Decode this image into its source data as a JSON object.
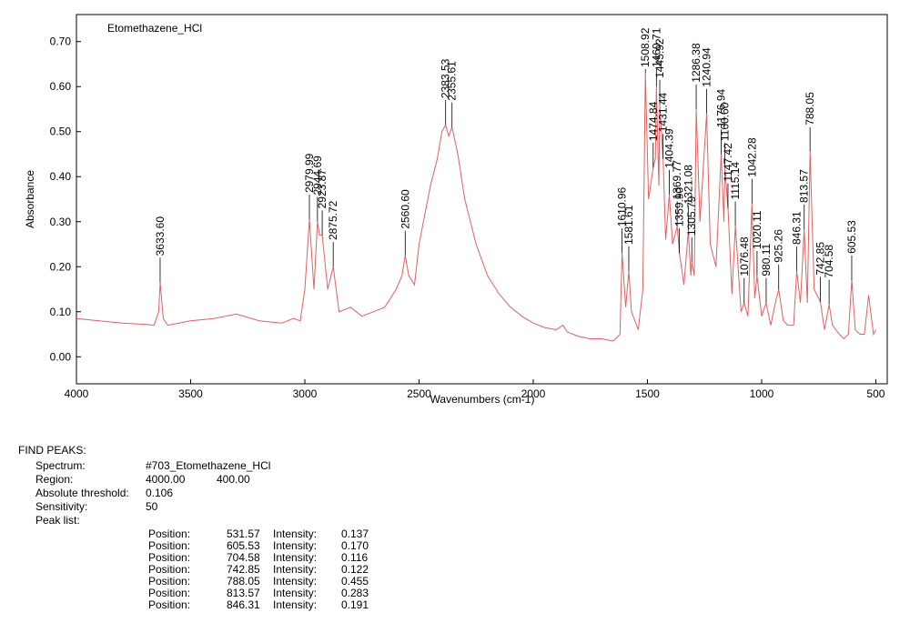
{
  "chart_data": {
    "type": "line",
    "title": "Etomethazene_HCl",
    "xlabel": "Wavenumbers (cm-1)",
    "ylabel": "Absorbance",
    "xlim": [
      4000,
      450
    ],
    "ylim": [
      -0.06,
      0.76
    ],
    "x_ticks": [
      4000,
      3500,
      3000,
      2500,
      2000,
      1500,
      1000,
      500
    ],
    "y_ticks": [
      "0.00",
      "0.10",
      "0.20",
      "0.30",
      "0.40",
      "0.50",
      "0.60",
      "0.70"
    ],
    "line_color": "#e06060",
    "series": [
      {
        "x": [
          4000,
          3900,
          3800,
          3700,
          3660,
          3640,
          3633.6,
          3620,
          3600,
          3500,
          3400,
          3300,
          3200,
          3100,
          3050,
          3020,
          3000,
          2979.99,
          2960,
          2944.69,
          2935,
          2923.87,
          2900,
          2875.72,
          2850,
          2800,
          2750,
          2700,
          2650,
          2600,
          2575,
          2560.6,
          2545,
          2520,
          2500,
          2450,
          2420,
          2400,
          2383.53,
          2370,
          2355.61,
          2330,
          2300,
          2250,
          2200,
          2150,
          2100,
          2050,
          2000,
          1950,
          1900,
          1870,
          1850,
          1800,
          1750,
          1700,
          1650,
          1620,
          1610.96,
          1595,
          1581.61,
          1570,
          1540,
          1520,
          1508.92,
          1495,
          1474.84,
          1465,
          1460.71,
          1450,
          1445.92,
          1431.44,
          1420,
          1404.39,
          1390,
          1369.77,
          1359.9,
          1340,
          1321.08,
          1310,
          1305.79,
          1295,
          1286.38,
          1270,
          1240.94,
          1225,
          1200,
          1176.94,
          1165,
          1160.6,
          1147.42,
          1130,
          1115.14,
          1090,
          1076.48,
          1060,
          1042.28,
          1030,
          1020.11,
          1000,
          980.11,
          960,
          940,
          925.26,
          905,
          885,
          860,
          846.31,
          830,
          813.57,
          800,
          788.05,
          770,
          742.85,
          725,
          704.58,
          690,
          660,
          640,
          620,
          605.53,
          590,
          570,
          550,
          531.57,
          510,
          500
        ],
        "y": [
          0.085,
          0.08,
          0.075,
          0.072,
          0.07,
          0.1,
          0.165,
          0.085,
          0.07,
          0.08,
          0.085,
          0.095,
          0.08,
          0.075,
          0.085,
          0.08,
          0.15,
          0.305,
          0.15,
          0.3,
          0.27,
          0.27,
          0.15,
          0.2,
          0.1,
          0.11,
          0.09,
          0.1,
          0.11,
          0.15,
          0.18,
          0.225,
          0.18,
          0.16,
          0.25,
          0.38,
          0.44,
          0.5,
          0.515,
          0.49,
          0.51,
          0.45,
          0.35,
          0.25,
          0.18,
          0.14,
          0.11,
          0.09,
          0.075,
          0.065,
          0.06,
          0.07,
          0.055,
          0.045,
          0.04,
          0.04,
          0.035,
          0.05,
          0.23,
          0.11,
          0.19,
          0.1,
          0.06,
          0.15,
          0.63,
          0.35,
          0.42,
          0.44,
          0.6,
          0.38,
          0.56,
          0.44,
          0.26,
          0.36,
          0.25,
          0.29,
          0.23,
          0.16,
          0.28,
          0.18,
          0.21,
          0.18,
          0.55,
          0.3,
          0.54,
          0.25,
          0.2,
          0.45,
          0.3,
          0.42,
          0.33,
          0.14,
          0.29,
          0.1,
          0.12,
          0.09,
          0.34,
          0.13,
          0.18,
          0.09,
          0.12,
          0.07,
          0.12,
          0.15,
          0.08,
          0.07,
          0.07,
          0.19,
          0.12,
          0.283,
          0.12,
          0.455,
          0.15,
          0.122,
          0.06,
          0.116,
          0.07,
          0.05,
          0.04,
          0.05,
          0.17,
          0.06,
          0.05,
          0.05,
          0.137,
          0.05,
          0.06
        ]
      }
    ],
    "peak_labels": [
      "3633.60",
      "2979.99",
      "2944.69",
      "2923.87",
      "2875.72",
      "2560.60",
      "2383.53",
      "2355.61",
      "1610.96",
      "1581.61",
      "1508.92",
      "1474.84",
      "1460.71",
      "1445.92",
      "1431.44",
      "1404.39",
      "1369.77",
      "1359.90",
      "1321.08",
      "1305.79",
      "1286.38",
      "1240.94",
      "1176.94",
      "1160.60",
      "1147.42",
      "1115.14",
      "1076.48",
      "1042.28",
      "1020.11",
      "980.11",
      "925.26",
      "846.31",
      "813.57",
      "788.05",
      "742.85",
      "704.58",
      "605.53"
    ]
  },
  "report": {
    "heading": "FIND PEAKS:",
    "spectrum_label": "Spectrum:",
    "spectrum_value": "#703_Etomethazene_HCl",
    "region_label": "Region:",
    "region_from": "4000.00",
    "region_to": "400.00",
    "threshold_label": "Absolute threshold:",
    "threshold_value": "0.106",
    "sensitivity_label": "Sensitivity:",
    "sensitivity_value": "50",
    "peak_list_label": "Peak list:",
    "position_label": "Position:",
    "intensity_label": "Intensity:",
    "peaks": [
      {
        "position": "531.57",
        "intensity": "0.137"
      },
      {
        "position": "605.53",
        "intensity": "0.170"
      },
      {
        "position": "704.58",
        "intensity": "0.116"
      },
      {
        "position": "742.85",
        "intensity": "0.122"
      },
      {
        "position": "788.05",
        "intensity": "0.455"
      },
      {
        "position": "813.57",
        "intensity": "0.283"
      },
      {
        "position": "846.31",
        "intensity": "0.191"
      }
    ]
  }
}
